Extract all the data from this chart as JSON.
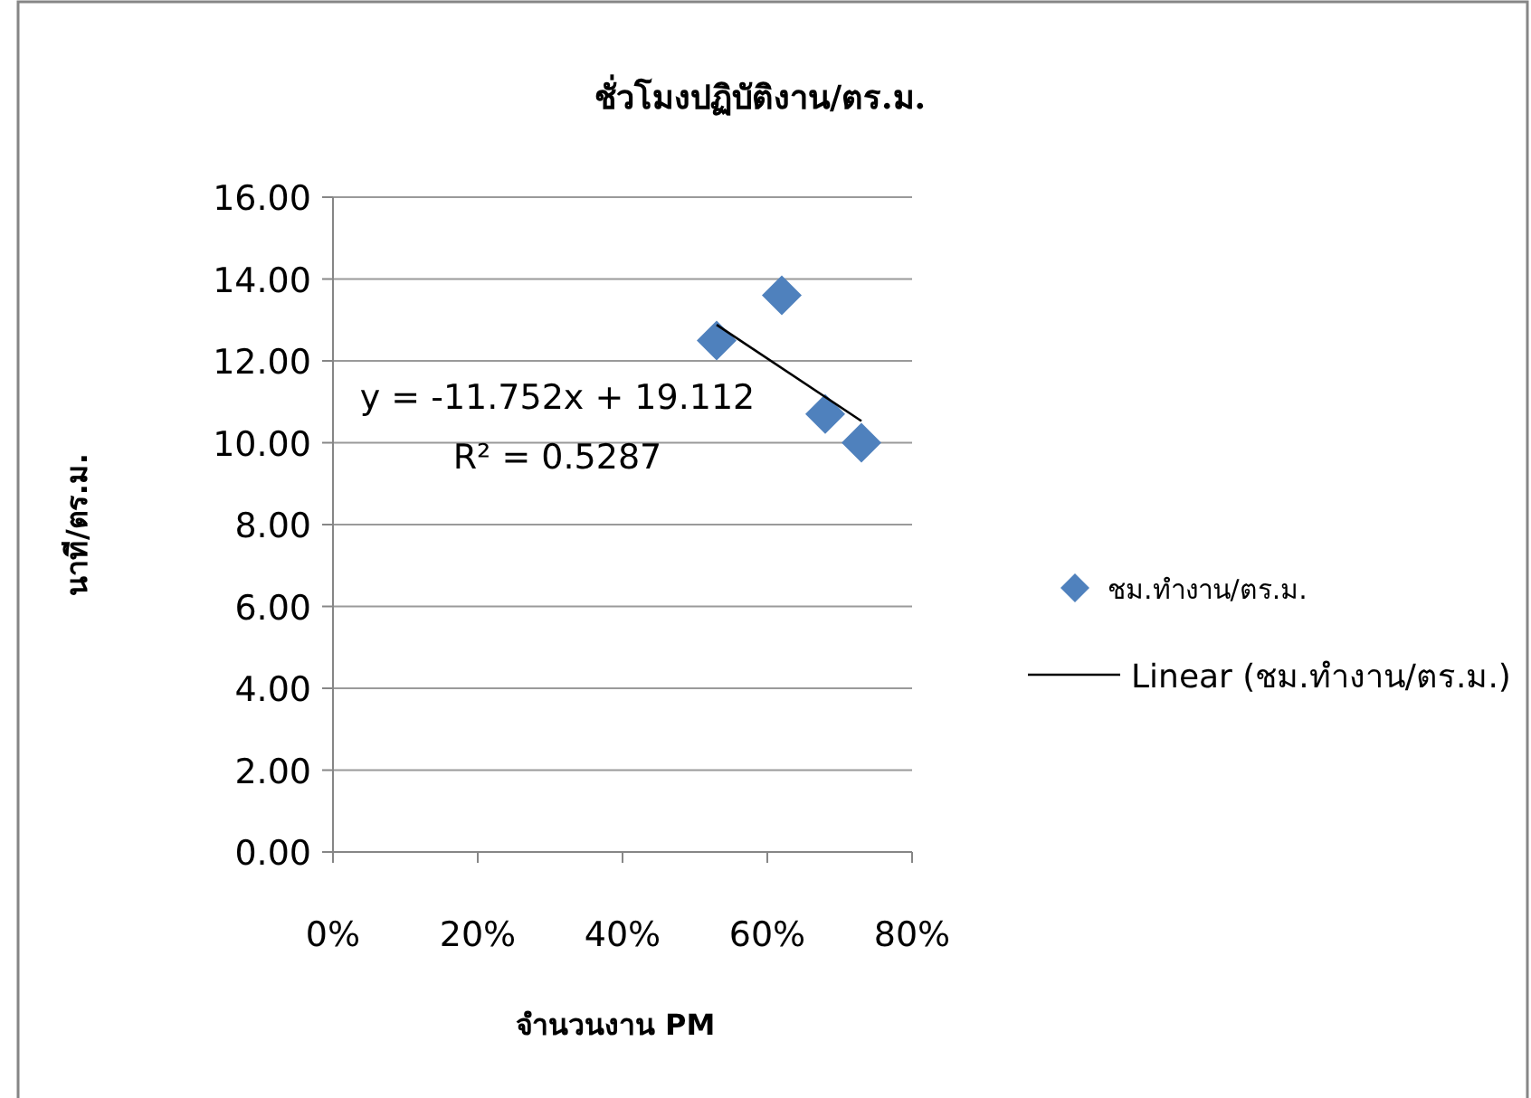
{
  "chart_data": {
    "type": "scatter",
    "title": "ชั่วโมงปฏิบัติงาน/ตร.ม.",
    "xlabel": "จำนวนงาน PM",
    "ylabel": "นาที/ตร.ม.",
    "xlim": [
      0,
      0.8
    ],
    "xticks": [
      {
        "value": 0,
        "label": "0%"
      },
      {
        "value": 0.2,
        "label": "20%"
      },
      {
        "value": 0.4,
        "label": "40%"
      },
      {
        "value": 0.6,
        "label": "60%"
      },
      {
        "value": 0.8,
        "label": "80%"
      }
    ],
    "ylim": [
      0,
      16
    ],
    "yticks": [
      {
        "value": 0,
        "label": "0.00"
      },
      {
        "value": 2,
        "label": "2.00"
      },
      {
        "value": 4,
        "label": "4.00"
      },
      {
        "value": 6,
        "label": "6.00"
      },
      {
        "value": 8,
        "label": "8.00"
      },
      {
        "value": 10,
        "label": "10.00"
      },
      {
        "value": 12,
        "label": "12.00"
      },
      {
        "value": 14,
        "label": "14.00"
      },
      {
        "value": 16,
        "label": "16.00"
      }
    ],
    "grid": "y",
    "legend": "right",
    "series": [
      {
        "name": "ชม.ทำงาน/ตร.ม.",
        "type": "scatter",
        "marker": "diamond",
        "color": "#4f81bd",
        "x": [
          0.53,
          0.62,
          0.68,
          0.73
        ],
        "values": [
          12.5,
          13.6,
          10.7,
          10.0
        ]
      },
      {
        "name": "Linear (ชม.ทำงาน/ตร.ม.)",
        "type": "line",
        "marker": "none",
        "color": "#000000",
        "x": [
          0.53,
          0.73
        ],
        "values": [
          12.88,
          10.53
        ]
      }
    ],
    "annotations": [
      "y = -11.752x + 19.112",
      "R² = 0.5287"
    ]
  }
}
